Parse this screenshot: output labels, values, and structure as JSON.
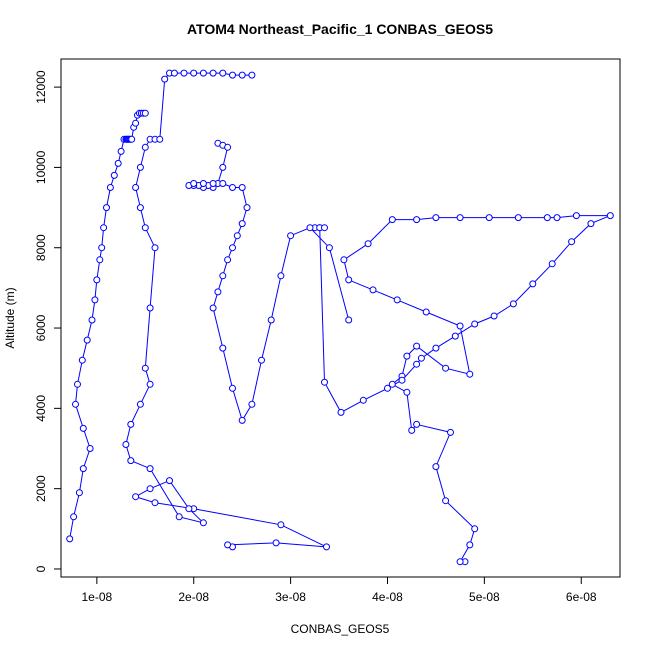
{
  "chart_data": {
    "type": "scatter",
    "title": "ATOM4 Northeast_Pacific_1 CONBAS_GEOS5",
    "xlabel": "CONBAS_GEOS5",
    "ylabel": "Altitude (m)",
    "xlim": [
      6.3e-09,
      6.4e-08
    ],
    "ylim": [
      -200,
      12700
    ],
    "x_ticks": [
      {
        "value": 1e-08,
        "label": "1e-08"
      },
      {
        "value": 2e-08,
        "label": "2e-08"
      },
      {
        "value": 3e-08,
        "label": "3e-08"
      },
      {
        "value": 4e-08,
        "label": "4e-08"
      },
      {
        "value": 5e-08,
        "label": "5e-08"
      },
      {
        "value": 6e-08,
        "label": "6e-08"
      }
    ],
    "y_ticks": [
      {
        "value": 0,
        "label": "0"
      },
      {
        "value": 2000,
        "label": "2000"
      },
      {
        "value": 4000,
        "label": "4000"
      },
      {
        "value": 6000,
        "label": "6000"
      },
      {
        "value": 8000,
        "label": "8000"
      },
      {
        "value": 10000,
        "label": "10000"
      },
      {
        "value": 12000,
        "label": "12000"
      }
    ],
    "grid": false,
    "legend": "none",
    "series_color": "#0000ff",
    "marker": "open-circle",
    "connected": true,
    "series": [
      {
        "x": [
          4.8e-08,
          4.75e-08,
          4.85e-08,
          4.9e-08,
          4.6e-08,
          4.5e-08,
          4.65e-08,
          4.3e-08,
          4.25e-08,
          4.2e-08,
          4.05e-08,
          4.15e-08,
          4.2e-08,
          4.3e-08,
          4.6e-08,
          4.85e-08,
          4.75e-08,
          4.4e-08,
          4.1e-08,
          3.85e-08,
          3.6e-08,
          3.55e-08,
          3.8e-08,
          4.05e-08,
          4.3e-08,
          4.5e-08,
          4.75e-08,
          5.05e-08,
          5.35e-08,
          5.65e-08,
          5.75e-08,
          5.95e-08,
          6.3e-08,
          6.1e-08,
          5.9e-08,
          5.7e-08,
          5.5e-08,
          5.3e-08,
          5.1e-08,
          4.9e-08,
          4.7e-08,
          4.5e-08,
          4.35e-08,
          4.3e-08,
          4.15e-08,
          4e-08,
          3.75e-08,
          3.52e-08,
          3.35e-08,
          3.3e-08,
          3.25e-08,
          3.3e-08,
          3.35e-08
        ],
        "y": [
          180,
          180,
          600,
          1000,
          1700,
          2550,
          3400,
          3600,
          3450,
          4400,
          4600,
          4800,
          5300,
          5550,
          5000,
          4850,
          6050,
          6400,
          6700,
          6950,
          7200,
          7700,
          8100,
          8700,
          8700,
          8750,
          8750,
          8750,
          8750,
          8750,
          8750,
          8800,
          8800,
          8600,
          8150,
          7600,
          7100,
          6600,
          6300,
          6100,
          5800,
          5500,
          5250,
          5100,
          4700,
          4500,
          4200,
          3900,
          4650,
          8500,
          8500,
          8500,
          8500
        ]
      },
      {
        "x": [
          7.2e-09,
          7.6e-09,
          8.2e-09,
          8.6e-09,
          9.3e-09,
          8.6e-09,
          7.8e-09,
          8e-09,
          8.5e-09,
          9e-09,
          9.5e-09,
          9.8e-09,
          1e-08,
          1.03e-08,
          1.05e-08,
          1.07e-08,
          1.1e-08,
          1.14e-08,
          1.18e-08,
          1.22e-08,
          1.25e-08,
          1.28e-08,
          1.3e-08,
          1.31e-08,
          1.32e-08,
          1.33e-08,
          1.34e-08,
          1.35e-08,
          1.36e-08,
          1.38e-08,
          1.4e-08,
          1.42e-08,
          1.44e-08,
          1.46e-08,
          1.48e-08,
          1.5e-08
        ],
        "y": [
          750,
          1300,
          1900,
          2500,
          3000,
          3500,
          4100,
          4600,
          5200,
          5700,
          6200,
          6700,
          7200,
          7700,
          8000,
          8500,
          9000,
          9500,
          9800,
          10100,
          10400,
          10700,
          10700,
          10700,
          10700,
          10700,
          10700,
          10700,
          10700,
          11000,
          11100,
          11300,
          11350,
          11350,
          11350,
          11350
        ]
      },
      {
        "x": [
          2.4e-08,
          2.35e-08,
          2.85e-08,
          3.37e-08,
          2.9e-08,
          2e-08,
          1.6e-08,
          1.4e-08,
          1.55e-08,
          1.75e-08,
          1.95e-08,
          2.1e-08,
          1.85e-08,
          1.55e-08,
          1.35e-08,
          1.3e-08,
          1.35e-08,
          1.45e-08,
          1.55e-08,
          1.5e-08,
          1.55e-08,
          1.6e-08,
          1.5e-08,
          1.45e-08,
          1.4e-08,
          1.45e-08,
          1.5e-08,
          1.55e-08,
          1.6e-08,
          1.65e-08,
          1.7e-08,
          1.75e-08,
          1.8e-08,
          1.9e-08,
          2e-08,
          2.1e-08,
          2.2e-08,
          2.3e-08,
          2.4e-08,
          2.5e-08,
          2.6e-08
        ],
        "y": [
          550,
          600,
          650,
          550,
          1100,
          1500,
          1650,
          1800,
          2000,
          2200,
          1500,
          1150,
          1300,
          2500,
          2700,
          3100,
          3600,
          4100,
          4600,
          5000,
          6500,
          8000,
          8500,
          9000,
          9500,
          10000,
          10500,
          10700,
          10700,
          10700,
          12200,
          12350,
          12350,
          12350,
          12350,
          12350,
          12350,
          12350,
          12300,
          12300,
          12300
        ]
      },
      {
        "x": [
          2.25e-08,
          2.3e-08,
          2.35e-08,
          2.3e-08,
          2.25e-08,
          2.2e-08,
          2.15e-08,
          2.1e-08,
          2.05e-08,
          2e-08,
          1.95e-08,
          2e-08,
          2.1e-08,
          2.2e-08,
          2.3e-08,
          2.4e-08,
          2.5e-08,
          2.55e-08,
          2.5e-08,
          2.45e-08,
          2.4e-08,
          2.35e-08,
          2.3e-08,
          2.25e-08,
          2.2e-08,
          2.3e-08,
          2.4e-08,
          2.5e-08,
          2.6e-08,
          2.7e-08,
          2.8e-08,
          2.9e-08,
          3e-08,
          3.2e-08,
          3.4e-08,
          3.6e-08
        ],
        "y": [
          10600,
          10550,
          10500,
          10000,
          9600,
          9500,
          9550,
          9500,
          9550,
          9550,
          9550,
          9600,
          9600,
          9600,
          9600,
          9500,
          9500,
          9000,
          8600,
          8300,
          8000,
          7700,
          7300,
          6900,
          6500,
          5500,
          4500,
          3700,
          4100,
          5200,
          6200,
          7300,
          8300,
          8500,
          8000,
          6200
        ]
      }
    ]
  }
}
